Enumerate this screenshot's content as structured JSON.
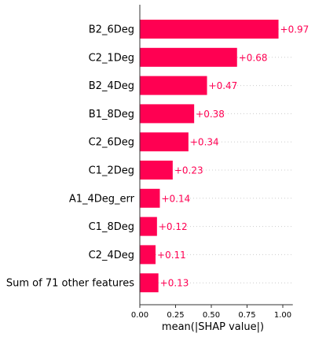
{
  "chart_data": {
    "type": "bar",
    "orientation": "horizontal",
    "categories": [
      "B2_6Deg",
      "C2_1Deg",
      "B2_4Deg",
      "B1_8Deg",
      "C2_6Deg",
      "C1_2Deg",
      "A1_4Deg_err",
      "C1_8Deg",
      "C2_4Deg",
      "Sum of 71 other features"
    ],
    "values": [
      0.97,
      0.68,
      0.47,
      0.38,
      0.34,
      0.23,
      0.14,
      0.12,
      0.11,
      0.13
    ],
    "value_labels": [
      "+0.97",
      "+0.68",
      "+0.47",
      "+0.38",
      "+0.34",
      "+0.23",
      "+0.14",
      "+0.12",
      "+0.11",
      "+0.13"
    ],
    "xlabel": "mean(|SHAP value|)",
    "xticks": [
      0.0,
      0.25,
      0.5,
      0.75,
      1.0
    ],
    "xtick_labels": [
      "0.00",
      "0.25",
      "0.50",
      "0.75",
      "1.00"
    ],
    "xlim": [
      0,
      1.07
    ],
    "grid": "dotted row guides",
    "bar_color": "#ff0052",
    "label_color": "#ff0052"
  }
}
